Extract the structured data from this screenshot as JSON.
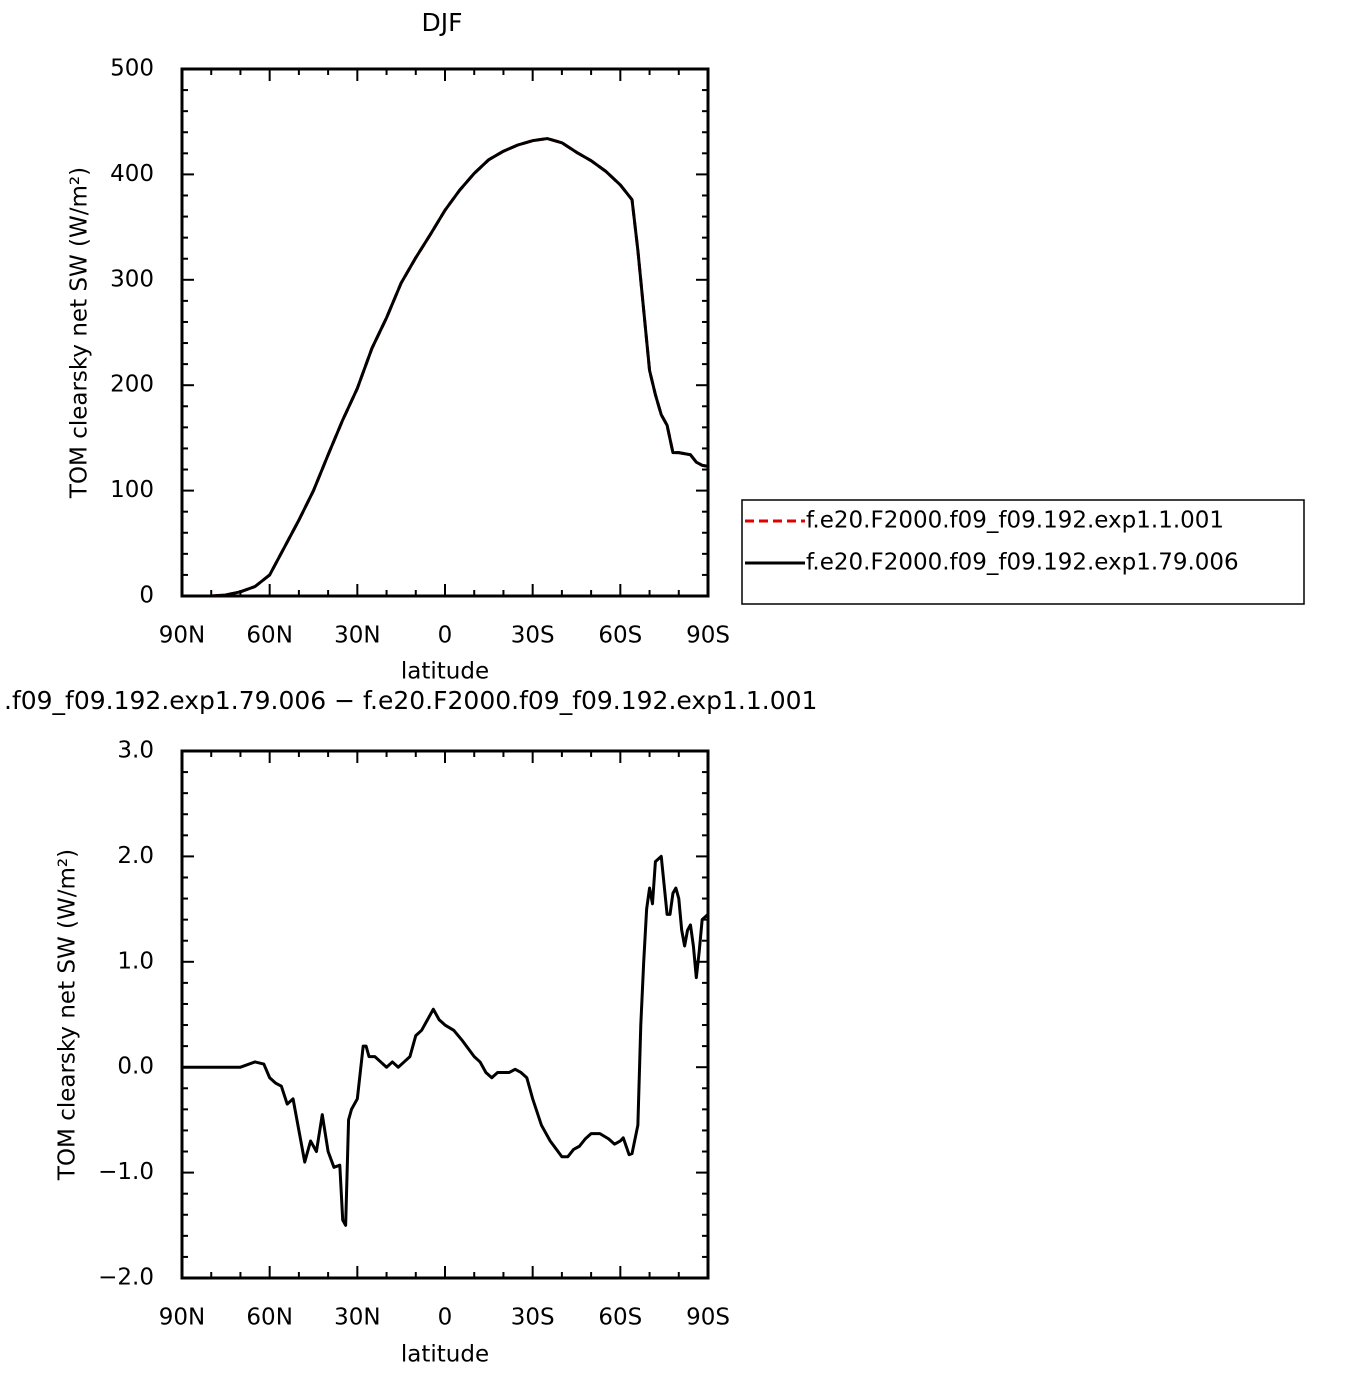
{
  "chart_data": [
    {
      "type": "line",
      "title": "DJF",
      "xlabel": "latitude",
      "ylabel": "TOM clearsky net SW (W/m²)",
      "xlim": [
        90,
        -90
      ],
      "xticks": [
        {
          "value": 90,
          "label": "90N"
        },
        {
          "value": 60,
          "label": "60N"
        },
        {
          "value": 30,
          "label": "30N"
        },
        0,
        {
          "value": -30,
          "label": "30S"
        },
        {
          "value": -60,
          "label": "60S"
        },
        {
          "value": -90,
          "label": "90S"
        }
      ],
      "xminor": [
        80,
        70,
        50,
        40,
        20,
        10,
        -10,
        -20,
        -40,
        -50,
        -70,
        -80
      ],
      "ylim": [
        0,
        500
      ],
      "yticks": [
        0,
        100,
        200,
        300,
        400,
        500
      ],
      "yminor": [
        20,
        40,
        60,
        80,
        120,
        140,
        160,
        180,
        220,
        240,
        260,
        280,
        320,
        340,
        360,
        380,
        420,
        440,
        460,
        480
      ],
      "legend": "right",
      "x": [
        80,
        75,
        70,
        65,
        60,
        55,
        50,
        45,
        40,
        35,
        30,
        25,
        20,
        15,
        10,
        5,
        0,
        -5,
        -10,
        -15,
        -20,
        -25,
        -30,
        -35,
        -40,
        -45,
        -50,
        -55,
        -60,
        -64,
        -66,
        -68,
        -70,
        -72,
        -74,
        -76,
        -78,
        -80,
        -84,
        -86,
        -88,
        -90
      ],
      "series": [
        {
          "name": "f.e20.F2000.f09_f09.192.exp1.1.001",
          "color": "#e00000",
          "linestyle": "dashed",
          "values": [
            0,
            1,
            4,
            9,
            20,
            46,
            72,
            100,
            134,
            167,
            197,
            235,
            264,
            297,
            321,
            343,
            366,
            385,
            401,
            414,
            422,
            428,
            432,
            434,
            430,
            421,
            413,
            403,
            390,
            376,
            328,
            271,
            214,
            191,
            172,
            162,
            136,
            136,
            134,
            127,
            124,
            123
          ]
        },
        {
          "name": "f.e20.F2000.f09_f09.192.exp1.79.006",
          "color": "#000000",
          "linestyle": "solid",
          "values": [
            0,
            1,
            4,
            9,
            20,
            46,
            72,
            100,
            134,
            167,
            197,
            235,
            264,
            297,
            321,
            343,
            366,
            385,
            401,
            414,
            422,
            428,
            432,
            434,
            430,
            421,
            413,
            403,
            390,
            376,
            328,
            271,
            214,
            191,
            172,
            162,
            136,
            136,
            134,
            127,
            124,
            123
          ]
        }
      ]
    },
    {
      "type": "line",
      "title": ".f09_f09.192.exp1.79.006 − f.e20.F2000.f09_f09.192.exp1.1.001",
      "xlabel": "latitude",
      "ylabel": "TOM clearsky net SW (W/m²)",
      "xlim": [
        90,
        -90
      ],
      "xticks": [
        {
          "value": 90,
          "label": "90N"
        },
        {
          "value": 60,
          "label": "60N"
        },
        {
          "value": 30,
          "label": "30N"
        },
        0,
        {
          "value": -30,
          "label": "30S"
        },
        {
          "value": -60,
          "label": "60S"
        },
        {
          "value": -90,
          "label": "90S"
        }
      ],
      "xminor": [
        80,
        70,
        50,
        40,
        20,
        10,
        -10,
        -20,
        -40,
        -50,
        -70,
        -80
      ],
      "ylim": [
        -2,
        3
      ],
      "yticks": [
        {
          "value": -2,
          "label": "−2.0"
        },
        {
          "value": -1,
          "label": "−1.0"
        },
        {
          "value": 0,
          "label": "0.0"
        },
        {
          "value": 1,
          "label": "1.0"
        },
        {
          "value": 2,
          "label": "2.0"
        },
        {
          "value": 3,
          "label": "3.0"
        }
      ],
      "yminor": [
        -1.8,
        -1.6,
        -1.4,
        -1.2,
        -0.8,
        -0.6,
        -0.4,
        -0.2,
        0.2,
        0.4,
        0.6,
        0.8,
        1.2,
        1.4,
        1.6,
        1.8,
        2.2,
        2.4,
        2.6,
        2.8
      ],
      "color": "#000000",
      "x": [
        90,
        80,
        70,
        65,
        62,
        60,
        58,
        56,
        54,
        52,
        50,
        48,
        46,
        44,
        42,
        40,
        38,
        36,
        35,
        34,
        33,
        32,
        30,
        28,
        27,
        26,
        24,
        22,
        20,
        18,
        16,
        14,
        12,
        10,
        8,
        6,
        4,
        2,
        0,
        -3,
        -6,
        -10,
        -12,
        -14,
        -16,
        -18,
        -20,
        -22,
        -24,
        -26,
        -28,
        -30,
        -33,
        -36,
        -40,
        -42,
        -44,
        -46,
        -48,
        -50,
        -53,
        -56,
        -58,
        -60,
        -61,
        -62,
        -63,
        -64,
        -66,
        -67,
        -68,
        -69,
        -70,
        -71,
        -72,
        -74,
        -76,
        -77,
        -78,
        -79,
        -80,
        -81,
        -82,
        -83,
        -84,
        -85,
        -86,
        -87,
        -88,
        -90
      ],
      "values": [
        0,
        0,
        0,
        0.05,
        0.03,
        -0.1,
        -0.15,
        -0.18,
        -0.35,
        -0.3,
        -0.6,
        -0.9,
        -0.7,
        -0.8,
        -0.45,
        -0.8,
        -0.95,
        -0.93,
        -1.45,
        -1.5,
        -0.5,
        -0.4,
        -0.3,
        0.2,
        0.2,
        0.1,
        0.1,
        0.05,
        0,
        0.05,
        0,
        0.05,
        0.1,
        0.3,
        0.35,
        0.45,
        0.55,
        0.45,
        0.4,
        0.35,
        0.25,
        0.1,
        0.05,
        -0.05,
        -0.1,
        -0.05,
        -0.05,
        -0.05,
        -0.02,
        -0.05,
        -0.1,
        -0.3,
        -0.55,
        -0.7,
        -0.85,
        -0.85,
        -0.78,
        -0.75,
        -0.68,
        -0.63,
        -0.63,
        -0.68,
        -0.73,
        -0.7,
        -0.67,
        -0.75,
        -0.83,
        -0.82,
        -0.55,
        0.4,
        1.0,
        1.5,
        1.7,
        1.55,
        1.95,
        2.0,
        1.45,
        1.45,
        1.65,
        1.7,
        1.6,
        1.3,
        1.15,
        1.3,
        1.35,
        1.15,
        0.85,
        1.1,
        1.4,
        1.45
      ]
    }
  ]
}
